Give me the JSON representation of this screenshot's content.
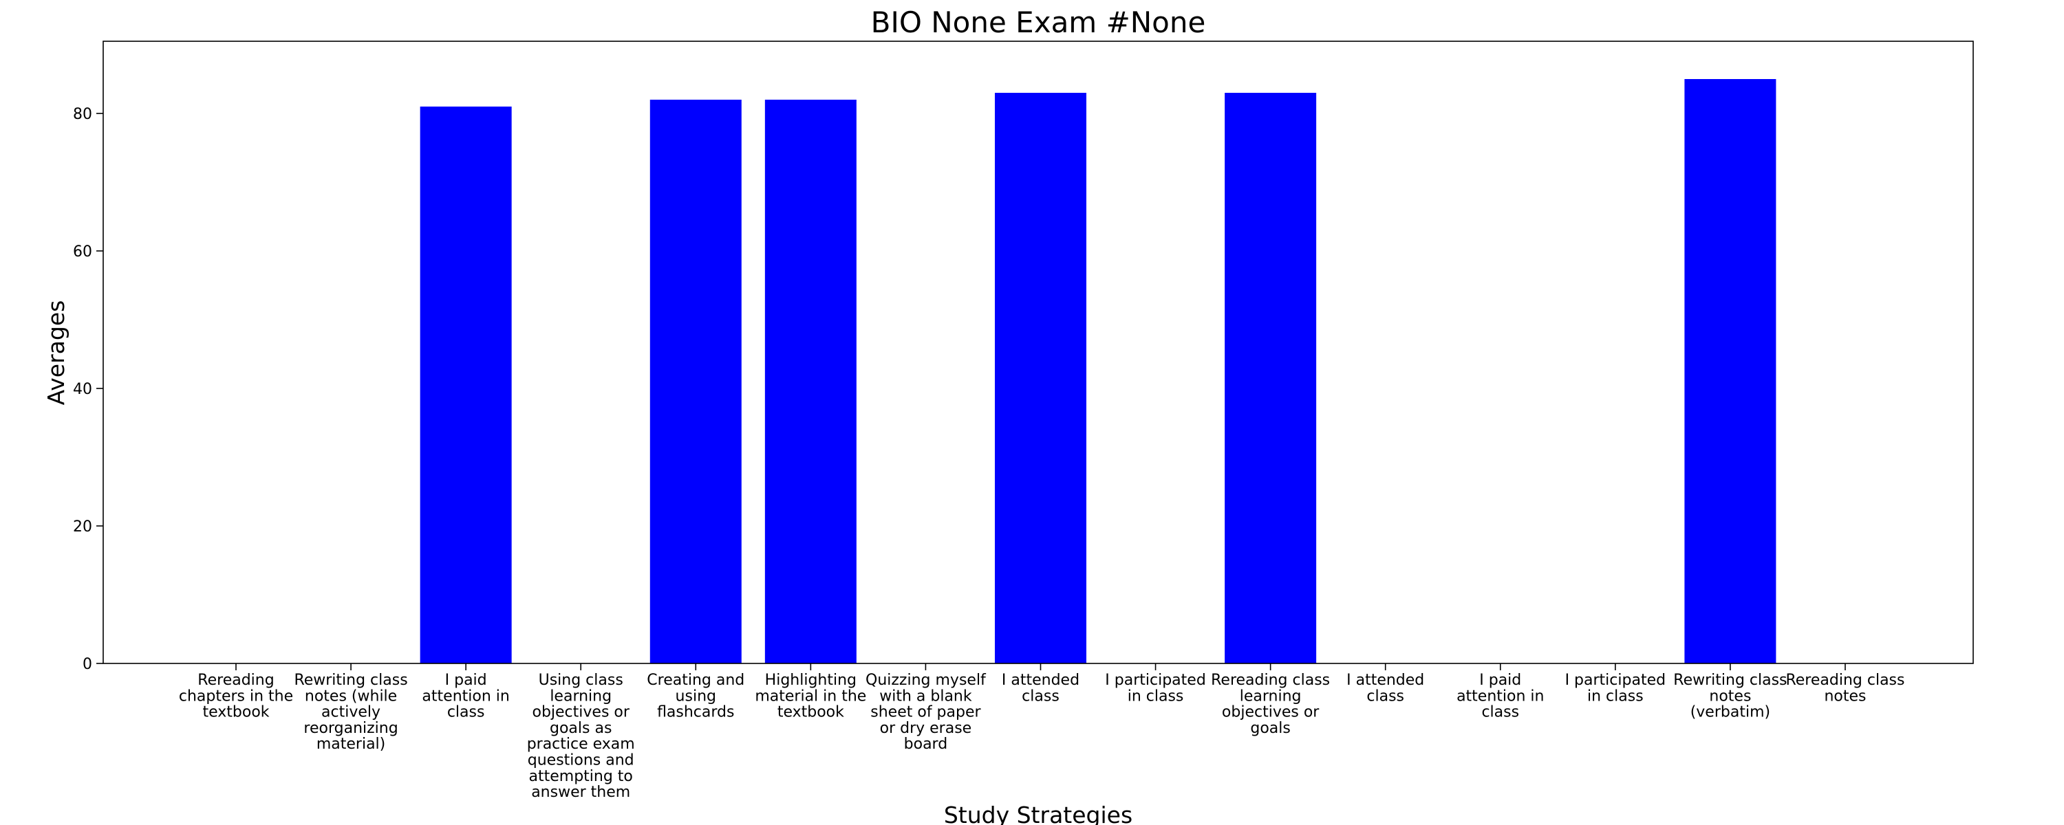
{
  "chart_data": {
    "type": "bar",
    "title": "BIO None Exam #None",
    "xlabel": "Study Strategies",
    "ylabel": "Averages",
    "categories": [
      "Rereading chapters in the textbook",
      "Rewriting class notes (while actively reorganizing material)",
      "I paid attention in class",
      "Using class learning objectives or goals as practice exam questions and attempting to answer them",
      "Creating and using flashcards",
      "Highlighting material in the textbook",
      "Quizzing myself with a blank sheet of paper or dry erase board",
      "I attended class",
      "I participated in class",
      "Rereading class learning objectives or goals",
      "I attended class",
      "I paid attention in class",
      "I participated in class",
      "Rewriting class notes (verbatim)",
      "Rereading class notes"
    ],
    "category_label_lines": [
      [
        "Rereading",
        "chapters in the",
        "textbook"
      ],
      [
        "Rewriting class",
        "notes (while",
        "actively",
        "reorganizing",
        "material)"
      ],
      [
        "I paid",
        "attention in",
        "class"
      ],
      [
        "Using class",
        "learning",
        "objectives or",
        "goals as",
        "practice exam",
        "questions and",
        "attempting to",
        "answer them"
      ],
      [
        "Creating and",
        "using",
        "flashcards"
      ],
      [
        "Highlighting",
        "material in the",
        "textbook"
      ],
      [
        "Quizzing myself",
        "with a blank",
        "sheet of paper",
        "or dry erase",
        "board"
      ],
      [
        "I attended",
        "class"
      ],
      [
        "I participated",
        "in class"
      ],
      [
        "Rereading class",
        "learning",
        "objectives or",
        "goals"
      ],
      [
        "I attended",
        "class"
      ],
      [
        "I paid",
        "attention in",
        "class"
      ],
      [
        "I participated",
        "in class"
      ],
      [
        "Rewriting class",
        "notes",
        "(verbatim)"
      ],
      [
        "Rereading class",
        "notes"
      ]
    ],
    "values": [
      0,
      0,
      81,
      0,
      82,
      82,
      0,
      83,
      0,
      83,
      0,
      0,
      0,
      85,
      0
    ],
    "ylim": [
      0,
      90.5
    ],
    "yticks": [
      0,
      20,
      40,
      60,
      80
    ],
    "bar_color": "#0000ff",
    "grid": false,
    "legend": "none"
  }
}
